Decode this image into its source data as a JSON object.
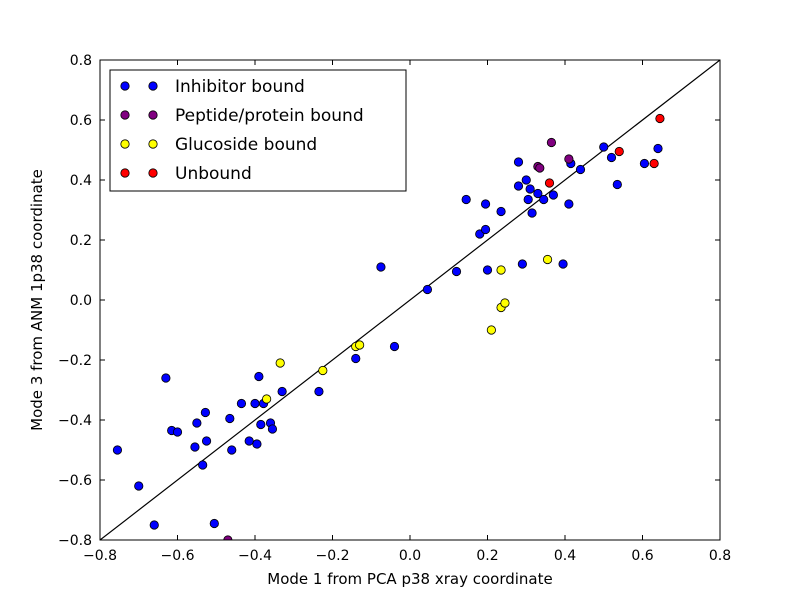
{
  "chart_data": {
    "type": "scatter",
    "xlabel": "Mode 1 from PCA p38 xray coordinate",
    "ylabel": "Mode 3 from ANM 1p38 coordinate",
    "xlim": [
      -0.8,
      0.8
    ],
    "ylim": [
      -0.8,
      0.8
    ],
    "xticks": [
      -0.8,
      -0.6,
      -0.4,
      -0.2,
      0.0,
      0.2,
      0.4,
      0.6,
      0.8
    ],
    "yticks": [
      -0.8,
      -0.6,
      -0.4,
      -0.2,
      0.0,
      0.2,
      0.4,
      0.6,
      0.8
    ],
    "xtick_labels": [
      "−0.8",
      "−0.6",
      "−0.4",
      "−0.2",
      "0.0",
      "0.2",
      "0.4",
      "0.6",
      "0.8"
    ],
    "ytick_labels": [
      "−0.8",
      "−0.6",
      "−0.4",
      "−0.2",
      "0.0",
      "0.2",
      "0.4",
      "0.6",
      "0.8"
    ],
    "grid": false,
    "legend_position": "top-left",
    "reference_line": {
      "from": [
        -0.8,
        -0.8
      ],
      "to": [
        0.8,
        0.8
      ],
      "color": "#000000"
    },
    "series": [
      {
        "name": "Inhibitor bound",
        "color": "#0000ff",
        "points": [
          [
            -0.755,
            -0.5
          ],
          [
            -0.7,
            -0.62
          ],
          [
            -0.66,
            -0.75
          ],
          [
            -0.63,
            -0.26
          ],
          [
            -0.615,
            -0.435
          ],
          [
            -0.6,
            -0.44
          ],
          [
            -0.555,
            -0.49
          ],
          [
            -0.55,
            -0.41
          ],
          [
            -0.535,
            -0.55
          ],
          [
            -0.528,
            -0.375
          ],
          [
            -0.525,
            -0.47
          ],
          [
            -0.505,
            -0.745
          ],
          [
            -0.465,
            -0.395
          ],
          [
            -0.46,
            -0.5
          ],
          [
            -0.435,
            -0.345
          ],
          [
            -0.415,
            -0.47
          ],
          [
            -0.4,
            -0.345
          ],
          [
            -0.395,
            -0.48
          ],
          [
            -0.39,
            -0.255
          ],
          [
            -0.385,
            -0.415
          ],
          [
            -0.378,
            -0.345
          ],
          [
            -0.36,
            -0.41
          ],
          [
            -0.355,
            -0.43
          ],
          [
            -0.33,
            -0.305
          ],
          [
            -0.235,
            -0.305
          ],
          [
            -0.14,
            -0.195
          ],
          [
            -0.075,
            0.11
          ],
          [
            -0.04,
            -0.155
          ],
          [
            0.045,
            0.035
          ],
          [
            0.12,
            0.095
          ],
          [
            0.145,
            0.335
          ],
          [
            0.18,
            0.22
          ],
          [
            0.195,
            0.235
          ],
          [
            0.195,
            0.32
          ],
          [
            0.2,
            0.1
          ],
          [
            0.235,
            0.295
          ],
          [
            0.28,
            0.46
          ],
          [
            0.28,
            0.38
          ],
          [
            0.29,
            0.12
          ],
          [
            0.3,
            0.4
          ],
          [
            0.305,
            0.335
          ],
          [
            0.31,
            0.37
          ],
          [
            0.315,
            0.29
          ],
          [
            0.33,
            0.355
          ],
          [
            0.345,
            0.335
          ],
          [
            0.37,
            0.35
          ],
          [
            0.395,
            0.12
          ],
          [
            0.41,
            0.32
          ],
          [
            0.415,
            0.455
          ],
          [
            0.44,
            0.435
          ],
          [
            0.5,
            0.51
          ],
          [
            0.52,
            0.475
          ],
          [
            0.535,
            0.385
          ],
          [
            0.605,
            0.455
          ],
          [
            0.64,
            0.505
          ]
        ]
      },
      {
        "name": "Peptide/protein bound",
        "color": "#800080",
        "points": [
          [
            -0.47,
            -0.8
          ],
          [
            0.33,
            0.445
          ],
          [
            0.335,
            0.44
          ],
          [
            0.365,
            0.525
          ],
          [
            0.41,
            0.47
          ]
        ]
      },
      {
        "name": "Glucoside bound",
        "color": "#ffff00",
        "points": [
          [
            -0.37,
            -0.33
          ],
          [
            -0.335,
            -0.21
          ],
          [
            -0.225,
            -0.235
          ],
          [
            -0.14,
            -0.155
          ],
          [
            -0.13,
            -0.15
          ],
          [
            0.21,
            -0.1
          ],
          [
            0.235,
            0.1
          ],
          [
            0.235,
            -0.025
          ],
          [
            0.245,
            -0.01
          ],
          [
            0.355,
            0.135
          ]
        ]
      },
      {
        "name": "Unbound",
        "color": "#ff0000",
        "points": [
          [
            0.36,
            0.39
          ],
          [
            0.54,
            0.495
          ],
          [
            0.63,
            0.455
          ],
          [
            0.645,
            0.605
          ]
        ]
      }
    ]
  }
}
